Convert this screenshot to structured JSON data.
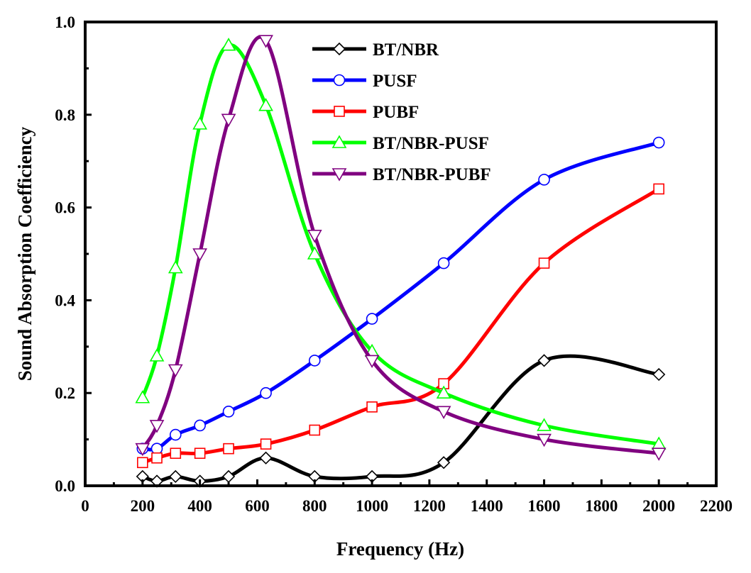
{
  "chart_data": {
    "type": "line",
    "title": "",
    "xlabel": "Frequency (Hz)",
    "ylabel": "Sound Absorption Coefficiency",
    "xlim": [
      0,
      2200
    ],
    "ylim": [
      0,
      1.0
    ],
    "x_ticks": [
      "0",
      "200",
      "400",
      "600",
      "800",
      "1000",
      "1200",
      "1400",
      "1600",
      "1800",
      "2000",
      "2200"
    ],
    "y_ticks": [
      "0.0",
      "0.2",
      "0.4",
      "0.6",
      "0.8",
      "1.0"
    ],
    "grid": false,
    "legend_position": "top-center",
    "x": [
      200,
      250,
      315,
      400,
      500,
      630,
      800,
      1000,
      1250,
      1600,
      2000
    ],
    "series": [
      {
        "name": "BT/NBR",
        "color": "#000000",
        "marker": "diamond",
        "values": [
          0.02,
          0.01,
          0.02,
          0.01,
          0.02,
          0.06,
          0.02,
          0.02,
          0.05,
          0.27,
          0.24
        ]
      },
      {
        "name": "PUSF",
        "color": "#0000ff",
        "marker": "circle",
        "values": [
          0.08,
          0.08,
          0.11,
          0.13,
          0.16,
          0.2,
          0.27,
          0.36,
          0.48,
          0.66,
          0.74
        ]
      },
      {
        "name": "PUBF",
        "color": "#ff0000",
        "marker": "square",
        "values": [
          0.05,
          0.06,
          0.07,
          0.07,
          0.08,
          0.09,
          0.12,
          0.17,
          0.22,
          0.48,
          0.64
        ]
      },
      {
        "name": "BT/NBR-PUSF",
        "color": "#00ff00",
        "marker": "triangle-up",
        "values": [
          0.19,
          0.28,
          0.47,
          0.78,
          0.95,
          0.82,
          0.5,
          0.29,
          0.2,
          0.13,
          0.09
        ]
      },
      {
        "name": "BT/NBR-PUBF",
        "color": "#800080",
        "marker": "triangle-down",
        "values": [
          0.08,
          0.13,
          0.25,
          0.5,
          0.79,
          0.96,
          0.54,
          0.27,
          0.16,
          0.1,
          0.07
        ]
      }
    ]
  }
}
